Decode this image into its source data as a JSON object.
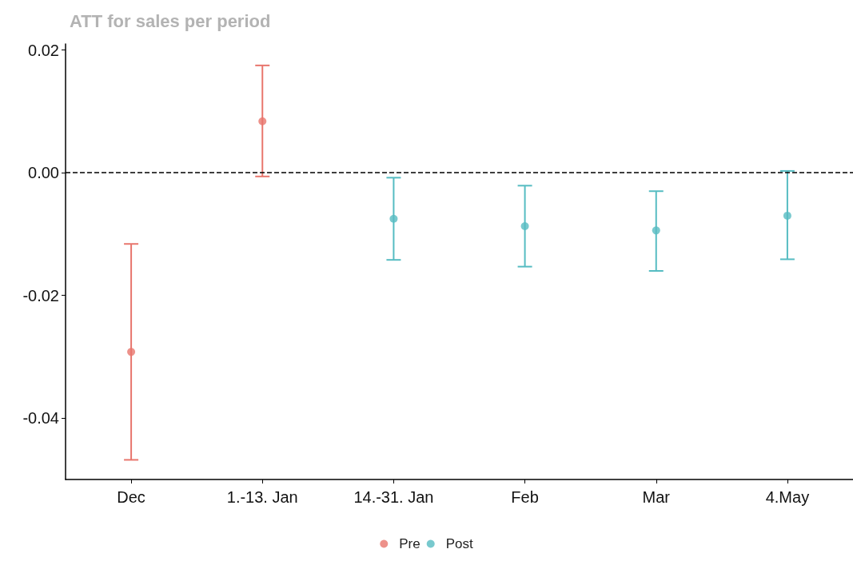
{
  "chart_data": {
    "type": "scatter",
    "title": "ATT for sales per period",
    "categories": [
      "Dec",
      "1.-13. Jan",
      "14.-31. Jan",
      "Feb",
      "Mar",
      "4.May"
    ],
    "series": [
      {
        "name": "Pre",
        "color": "#e8766d",
        "values": [
          -0.0292,
          0.0084,
          null,
          null,
          null,
          null
        ],
        "errors": [
          [
            -0.0468,
            -0.0116
          ],
          [
            -0.0006,
            0.0175
          ],
          null,
          null,
          null,
          null
        ]
      },
      {
        "name": "Post",
        "color": "#56bcc2",
        "values": [
          null,
          null,
          -0.0075,
          -0.0087,
          -0.0094,
          -0.007
        ],
        "errors": [
          null,
          null,
          [
            -0.0142,
            -0.0008
          ],
          [
            -0.0153,
            -0.0021
          ],
          [
            -0.016,
            -0.003
          ],
          [
            -0.0141,
            0.0003
          ]
        ]
      }
    ],
    "ylim": [
      -0.05,
      0.021
    ],
    "yticks": [
      {
        "value": -0.04,
        "label": "-0.04"
      },
      {
        "value": -0.02,
        "label": "-0.02"
      },
      {
        "value": 0,
        "label": "0.00"
      },
      {
        "value": 0.02,
        "label": "0.02"
      }
    ],
    "ref_lines": [
      {
        "axis": "y",
        "value": 0,
        "label": null,
        "color": "#000000",
        "line_style": "dashed"
      }
    ],
    "grid": false,
    "legend": "bottom",
    "marker": "circle"
  }
}
